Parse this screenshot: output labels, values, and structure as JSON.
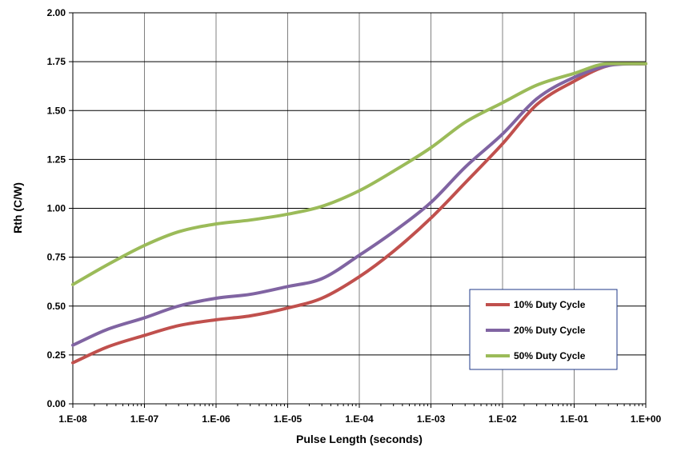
{
  "chart_data": {
    "type": "line",
    "title": "",
    "xlabel": "Pulse Length (seconds)",
    "ylabel": "Rth (C/W)",
    "x_scale": "log",
    "xlim": [
      1e-08,
      1
    ],
    "ylim": [
      0,
      2.0
    ],
    "grid": true,
    "legend_position": "bottom-right",
    "x_tick_labels": [
      "1.E-08",
      "1.E-07",
      "1.E-06",
      "1.E-05",
      "1.E-04",
      "1.E-03",
      "1.E-02",
      "1.E-01",
      "1.E+00"
    ],
    "y_tick_labels": [
      "0.00",
      "0.25",
      "0.50",
      "0.75",
      "1.00",
      "1.25",
      "1.50",
      "1.75",
      "2.00"
    ],
    "x": [
      1e-08,
      3e-08,
      1e-07,
      3e-07,
      1e-06,
      3e-06,
      1e-05,
      3e-05,
      0.0001,
      0.0003,
      0.001,
      0.003,
      0.01,
      0.03,
      0.1,
      0.3,
      1
    ],
    "series": [
      {
        "name": "10% Duty Cycle",
        "color": "#c0504d",
        "values": [
          0.21,
          0.29,
          0.35,
          0.4,
          0.43,
          0.45,
          0.49,
          0.54,
          0.65,
          0.78,
          0.95,
          1.13,
          1.33,
          1.53,
          1.65,
          1.73,
          1.74
        ]
      },
      {
        "name": "20% Duty Cycle",
        "color": "#8064a2",
        "values": [
          0.3,
          0.38,
          0.44,
          0.5,
          0.54,
          0.56,
          0.6,
          0.64,
          0.76,
          0.88,
          1.03,
          1.21,
          1.38,
          1.56,
          1.67,
          1.73,
          1.74
        ]
      },
      {
        "name": "50% Duty Cycle",
        "color": "#9bbb59",
        "values": [
          0.61,
          0.71,
          0.81,
          0.88,
          0.92,
          0.94,
          0.97,
          1.01,
          1.09,
          1.19,
          1.31,
          1.44,
          1.54,
          1.63,
          1.69,
          1.74,
          1.74
        ]
      }
    ]
  }
}
